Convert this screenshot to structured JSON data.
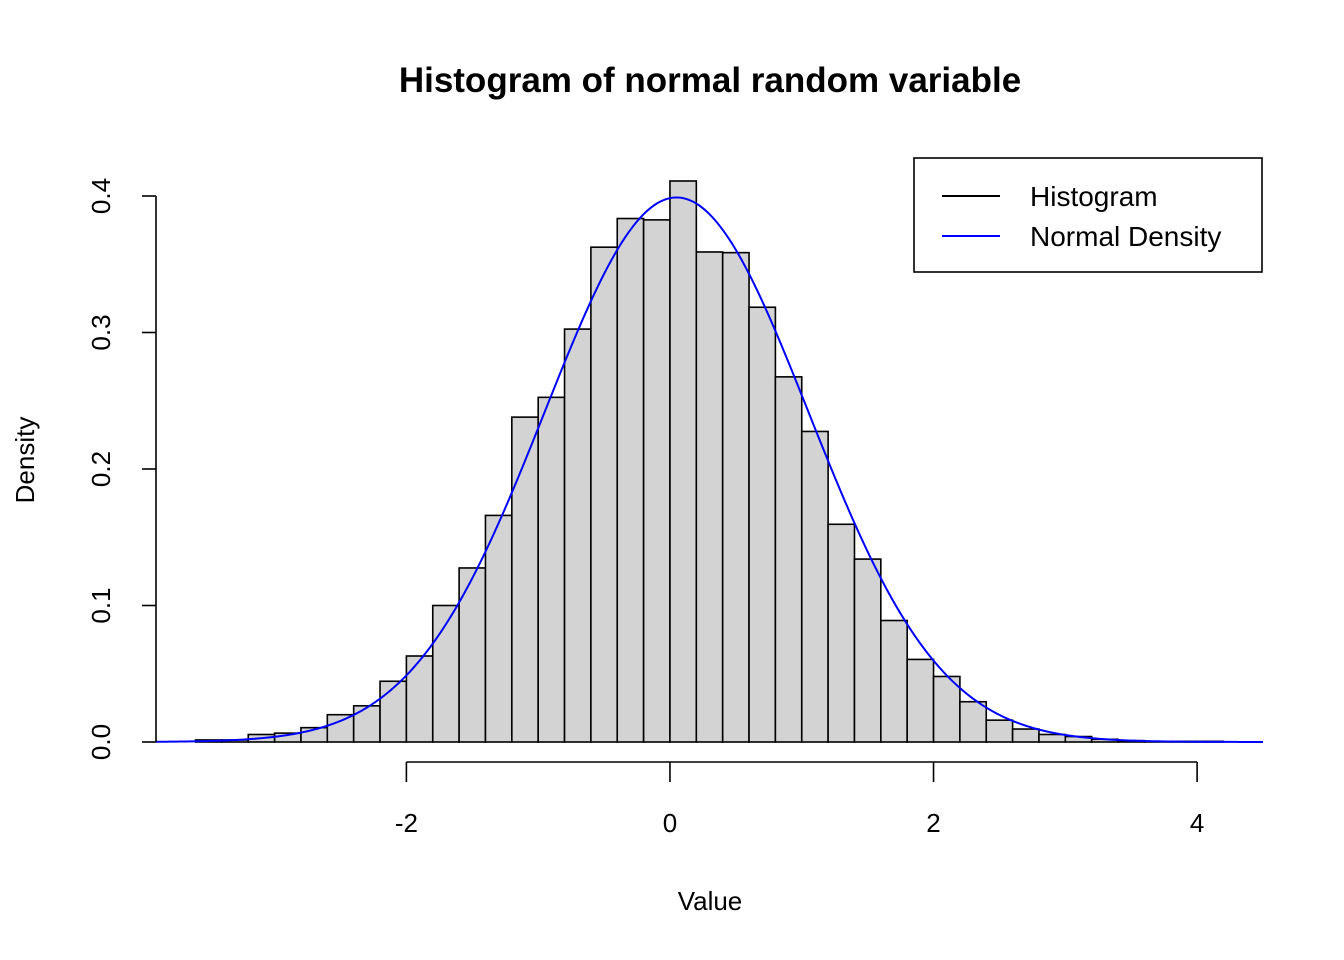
{
  "chart_data": {
    "type": "bar",
    "title": "Histogram of normal random variable",
    "xlabel": "Value",
    "ylabel": "Density",
    "xlim": [
      -3.9,
      4.5
    ],
    "ylim": [
      0,
      0.41
    ],
    "x_ticks": [
      -2,
      0,
      2,
      4
    ],
    "x_tick_labels": [
      "-2",
      "0",
      "2",
      "4"
    ],
    "y_ticks": [
      0,
      0.1,
      0.2,
      0.3,
      0.4
    ],
    "y_tick_labels": [
      "0.0",
      "0.1",
      "0.2",
      "0.3",
      "0.4"
    ],
    "grid": false,
    "legend_position": "top-right",
    "bin_width": 0.2,
    "series": [
      {
        "name": "Histogram",
        "type": "bar",
        "color": "#000000",
        "fill": "#d3d3d3",
        "bins_start": [
          -3.6,
          -3.4,
          -3.2,
          -3.0,
          -2.8,
          -2.6,
          -2.4,
          -2.2,
          -2.0,
          -1.8,
          -1.6,
          -1.4,
          -1.2,
          -1.0,
          -0.8,
          -0.6,
          -0.4,
          -0.2,
          0.0,
          0.2,
          0.4,
          0.6,
          0.8,
          1.0,
          1.2,
          1.4,
          1.6,
          1.8,
          2.0,
          2.2,
          2.4,
          2.6,
          2.8,
          3.0,
          3.2,
          3.4,
          3.6,
          3.8,
          4.0
        ],
        "values": [
          0.0015,
          0.0015,
          0.0055,
          0.0065,
          0.0105,
          0.02,
          0.0265,
          0.0445,
          0.063,
          0.1,
          0.1275,
          0.166,
          0.238,
          0.2525,
          0.3025,
          0.3625,
          0.3835,
          0.3825,
          0.411,
          0.359,
          0.3585,
          0.3185,
          0.2675,
          0.2275,
          0.1595,
          0.134,
          0.089,
          0.0605,
          0.048,
          0.0295,
          0.016,
          0.0095,
          0.0055,
          0.004,
          0.002,
          0.001,
          0.0005,
          0.0005,
          0.0005
        ]
      },
      {
        "name": "Normal Density",
        "type": "line",
        "color": "#0000ff",
        "mean": 0.05,
        "sd": 1.0
      }
    ]
  }
}
